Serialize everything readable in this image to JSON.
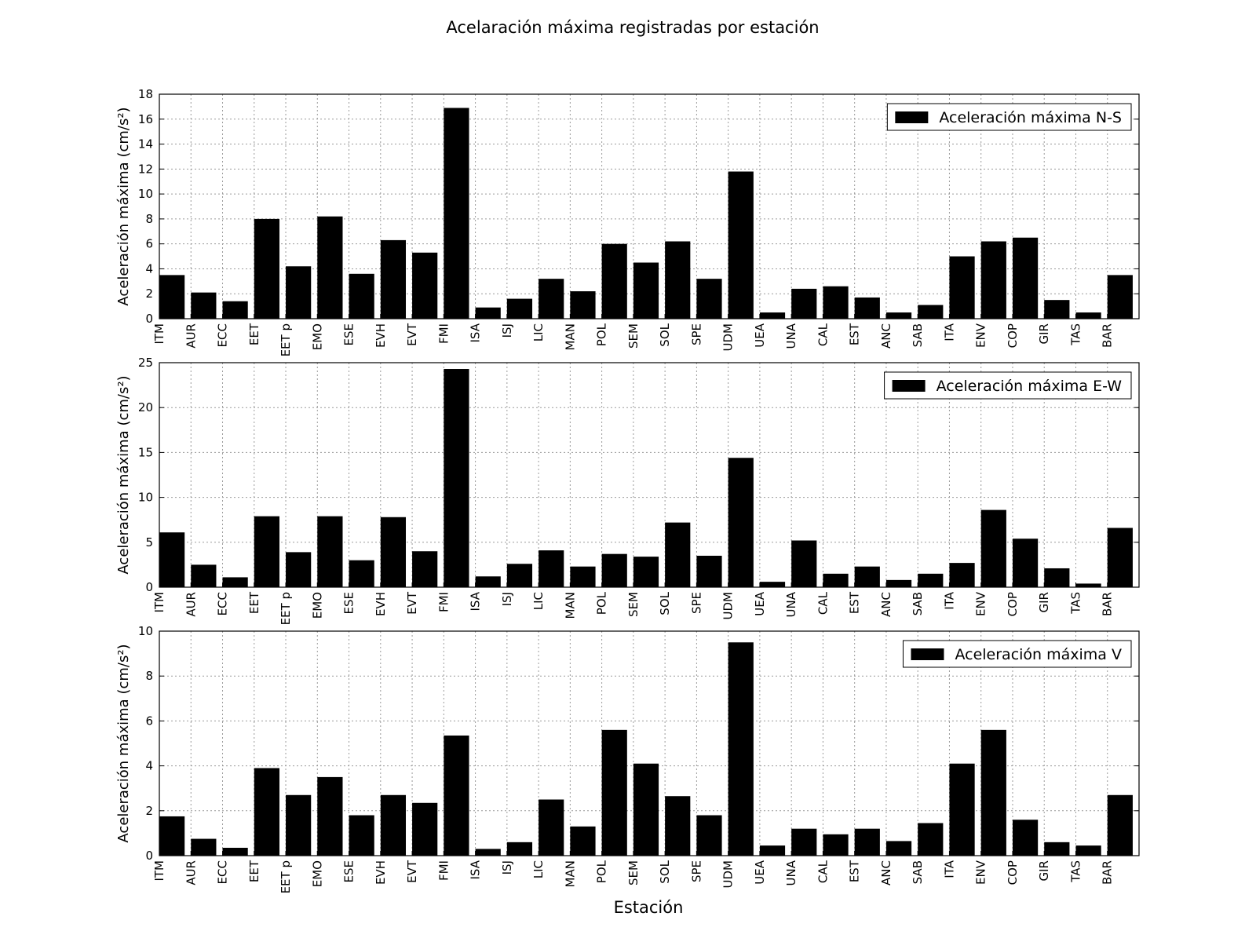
{
  "figure": {
    "title": "Acelaración máxima registradas por estación",
    "xlabel": "Estación"
  },
  "chart_data": [
    {
      "type": "bar",
      "ylabel": "Aceleración máxima (cm/s²)",
      "ylim": [
        0,
        18
      ],
      "yticks": [
        0,
        2,
        4,
        6,
        8,
        10,
        12,
        14,
        16,
        18
      ],
      "grid": true,
      "legend_position": "top-right",
      "bar_color": "#000000",
      "categories": [
        "ITM",
        "AUR",
        "ECC",
        "EET",
        "EET p",
        "EMO",
        "ESE",
        "EVH",
        "EVT",
        "FMI",
        "ISA",
        "ISJ",
        "LIC",
        "MAN",
        "POL",
        "SEM",
        "SOL",
        "SPE",
        "UDM",
        "UEA",
        "UNA",
        "CAL",
        "EST",
        "ANC",
        "SAB",
        "ITA",
        "ENV",
        "COP",
        "GIR",
        "TAS",
        "BAR"
      ],
      "series": [
        {
          "name": "Aceleración máxima N-S",
          "values": [
            3.5,
            2.1,
            1.4,
            8.0,
            4.2,
            8.2,
            3.6,
            6.3,
            5.3,
            16.9,
            0.9,
            1.6,
            3.2,
            2.2,
            6.0,
            4.5,
            6.2,
            3.2,
            11.8,
            0.5,
            2.4,
            2.6,
            1.7,
            0.5,
            1.1,
            5.0,
            6.2,
            6.5,
            1.5,
            0.5,
            3.5
          ]
        }
      ]
    },
    {
      "type": "bar",
      "ylabel": "Aceleración máxima (cm/s²)",
      "ylim": [
        0,
        25
      ],
      "yticks": [
        0,
        5,
        10,
        15,
        20,
        25
      ],
      "grid": true,
      "legend_position": "top-right",
      "bar_color": "#000000",
      "categories": [
        "ITM",
        "AUR",
        "ECC",
        "EET",
        "EET p",
        "EMO",
        "ESE",
        "EVH",
        "EVT",
        "FMI",
        "ISA",
        "ISJ",
        "LIC",
        "MAN",
        "POL",
        "SEM",
        "SOL",
        "SPE",
        "UDM",
        "UEA",
        "UNA",
        "CAL",
        "EST",
        "ANC",
        "SAB",
        "ITA",
        "ENV",
        "COP",
        "GIR",
        "TAS",
        "BAR"
      ],
      "series": [
        {
          "name": "Aceleración máxima E-W",
          "values": [
            6.1,
            2.5,
            1.1,
            7.9,
            3.9,
            7.9,
            3.0,
            7.8,
            4.0,
            24.3,
            1.2,
            2.6,
            4.1,
            2.3,
            3.7,
            3.4,
            7.2,
            3.5,
            14.4,
            0.6,
            5.2,
            1.5,
            2.3,
            0.8,
            1.5,
            2.7,
            8.6,
            5.4,
            2.1,
            0.4,
            6.6
          ]
        }
      ]
    },
    {
      "type": "bar",
      "ylabel": "Aceleración máxima (cm/s²)",
      "ylim": [
        0,
        10
      ],
      "yticks": [
        0,
        2,
        4,
        6,
        8,
        10
      ],
      "grid": true,
      "legend_position": "top-right",
      "bar_color": "#000000",
      "categories": [
        "ITM",
        "AUR",
        "ECC",
        "EET",
        "EET p",
        "EMO",
        "ESE",
        "EVH",
        "EVT",
        "FMI",
        "ISA",
        "ISJ",
        "LIC",
        "MAN",
        "POL",
        "SEM",
        "SOL",
        "SPE",
        "UDM",
        "UEA",
        "UNA",
        "CAL",
        "EST",
        "ANC",
        "SAB",
        "ITA",
        "ENV",
        "COP",
        "GIR",
        "TAS",
        "BAR"
      ],
      "series": [
        {
          "name": "Aceleración máxima V",
          "values": [
            1.75,
            0.75,
            0.35,
            3.9,
            2.7,
            3.5,
            1.8,
            2.7,
            2.35,
            5.35,
            0.3,
            0.6,
            2.5,
            1.3,
            5.6,
            4.1,
            2.65,
            1.8,
            9.5,
            0.45,
            1.2,
            0.95,
            1.2,
            0.65,
            1.45,
            4.1,
            5.6,
            1.6,
            0.6,
            0.45,
            2.7
          ]
        }
      ]
    }
  ]
}
